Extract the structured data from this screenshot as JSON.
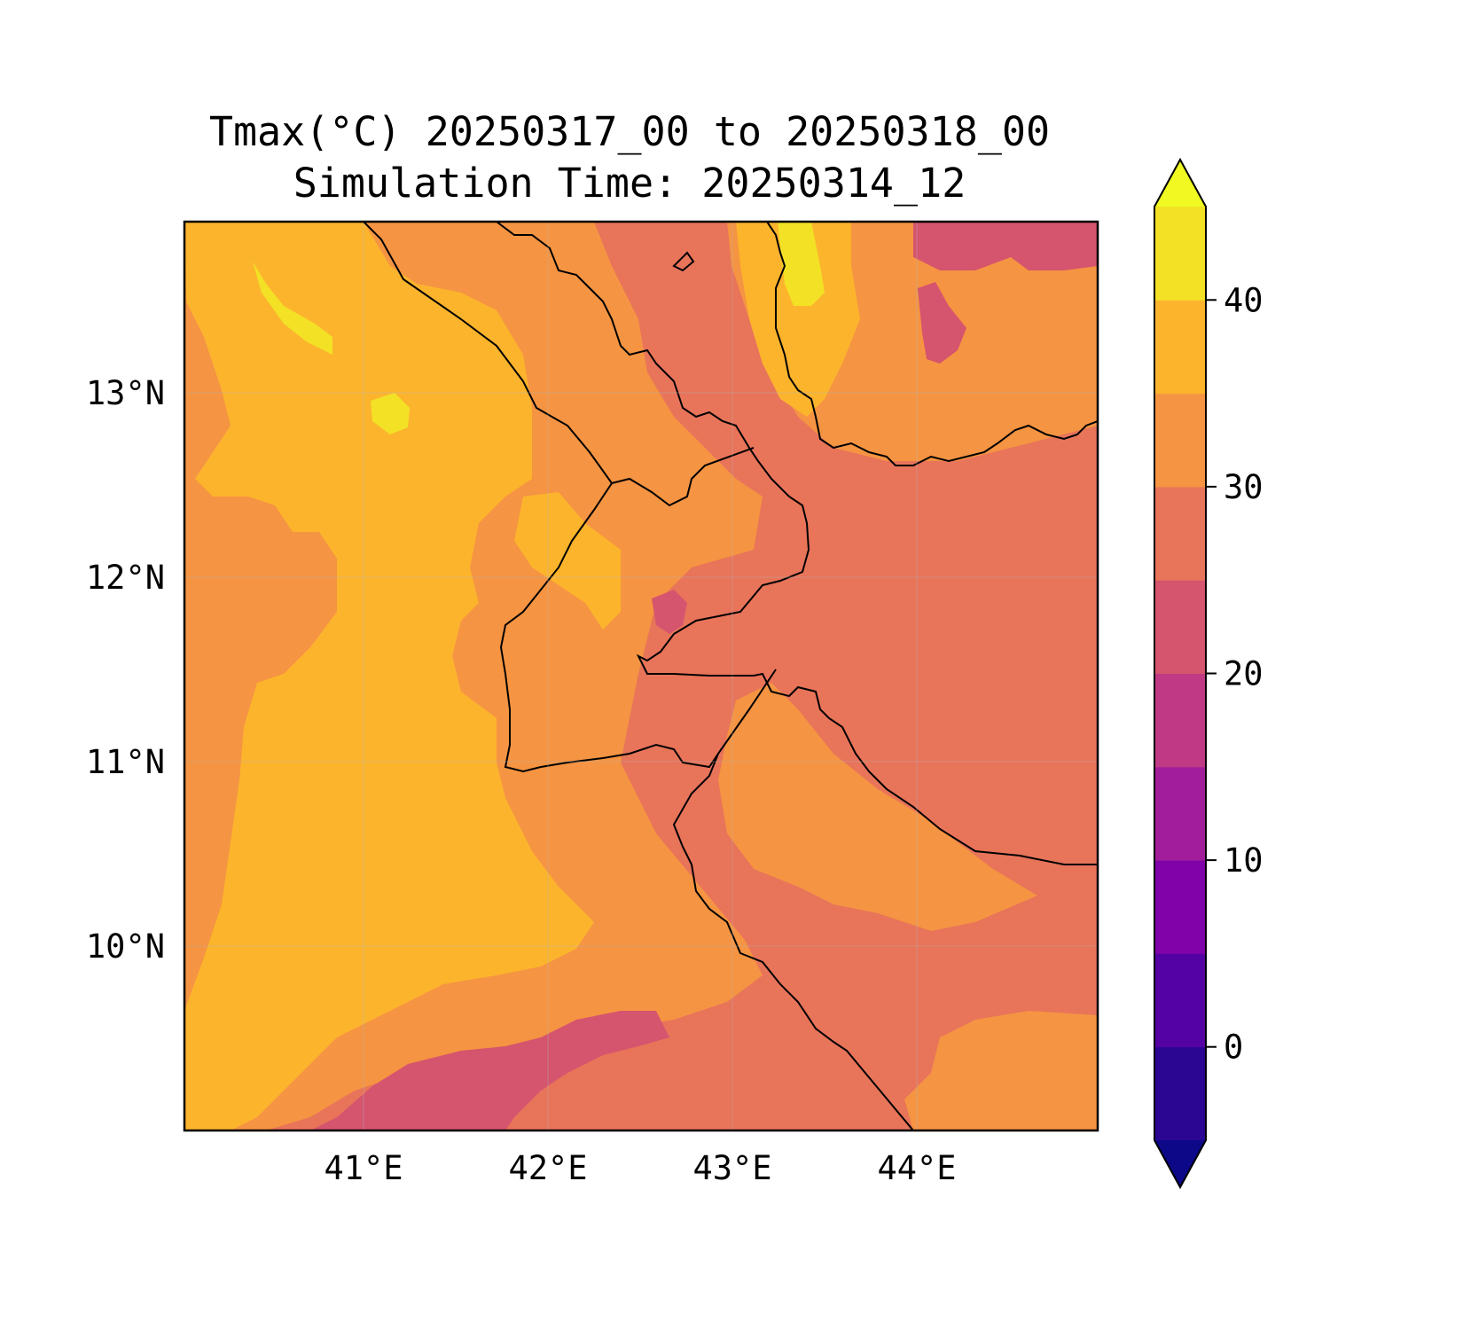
{
  "title": {
    "line1": "Tmax(°C) 20250317_00 to 20250318_00",
    "line2": "Simulation Time: 20250314_12"
  },
  "map": {
    "variable": "Tmax(°C)",
    "lon_range": [
      40.0,
      44.95
    ],
    "lat_range": [
      9.0,
      13.9
    ],
    "lon_ticks": [
      "41°E",
      "42°E",
      "43°E",
      "44°E"
    ],
    "lat_ticks": [
      "13°N",
      "12°N",
      "11°N",
      "10°N"
    ],
    "gridlines": true
  },
  "colorbar": {
    "ticks": [
      "40",
      "30",
      "20",
      "10",
      "0"
    ],
    "range": [
      -5,
      45
    ],
    "extend": "both",
    "levels": [
      {
        "min": -5,
        "max": 0,
        "color": "#2a0693"
      },
      {
        "min": 0,
        "max": 5,
        "color": "#5402a3"
      },
      {
        "min": 5,
        "max": 10,
        "color": "#7f03a8"
      },
      {
        "min": 10,
        "max": 15,
        "color": "#a21d9a"
      },
      {
        "min": 15,
        "max": 20,
        "color": "#bf3984"
      },
      {
        "min": 20,
        "max": 25,
        "color": "#d5546e"
      },
      {
        "min": 25,
        "max": 30,
        "color": "#e8745a"
      },
      {
        "min": 30,
        "max": 35,
        "color": "#f59442"
      },
      {
        "min": 35,
        "max": 40,
        "color": "#fcb42d"
      },
      {
        "min": 40,
        "max": 45,
        "color": "#f3e125"
      }
    ],
    "under_color": "#0d0887",
    "over_color": "#f0f921"
  }
}
